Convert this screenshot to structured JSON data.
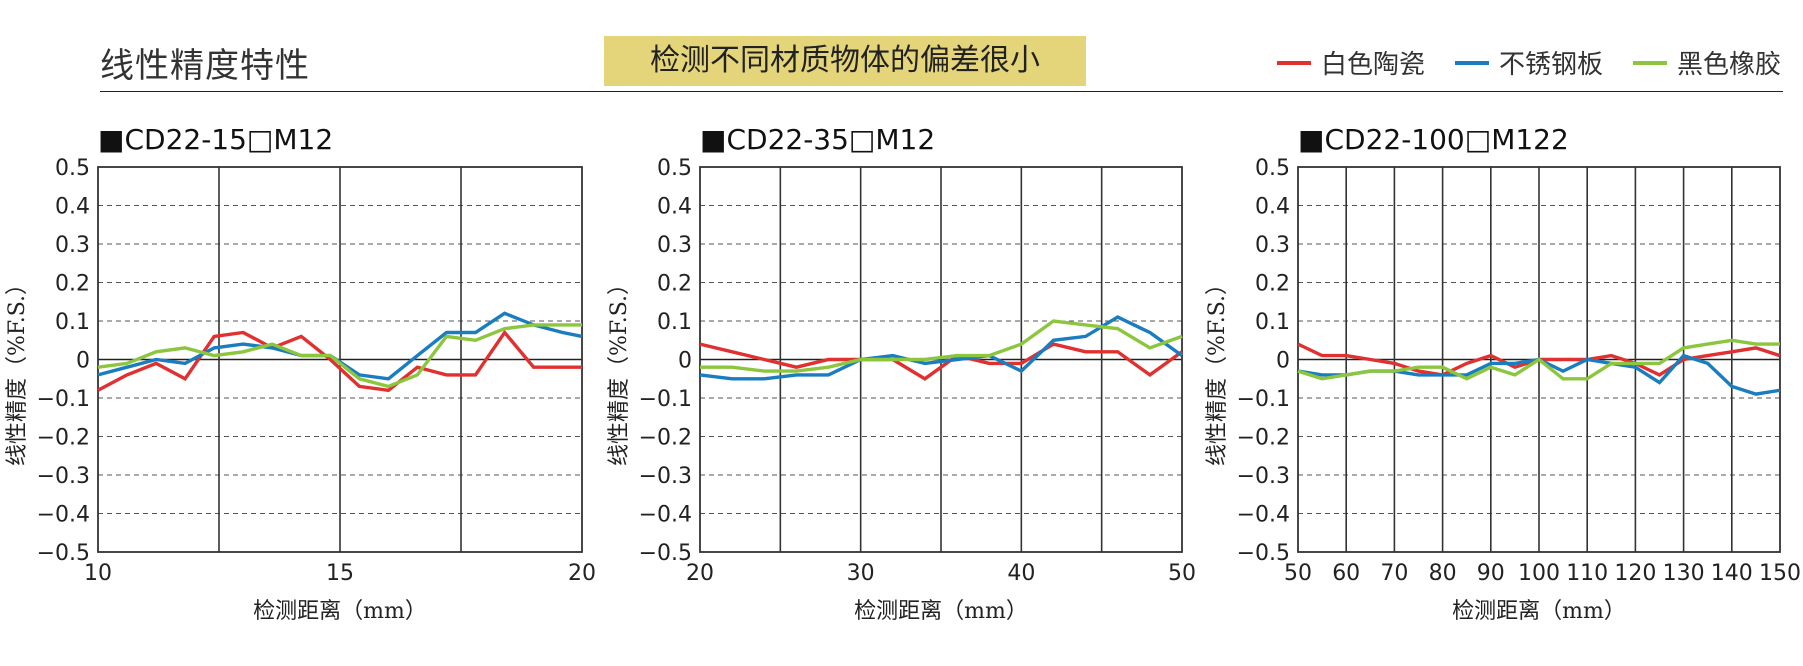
{
  "header": {
    "title": "线性精度特性",
    "banner": "检测不同材质物体的偏差很小"
  },
  "legend": [
    {
      "name": "白色陶瓷",
      "color": "#e03030"
    },
    {
      "name": "不锈钢板",
      "color": "#1a7dc0"
    },
    {
      "name": "黑色橡胶",
      "color": "#8cc63f"
    }
  ],
  "chart_data": [
    {
      "type": "line",
      "title": "■CD22-15□M12",
      "xlabel": "检测距离（mm）",
      "ylabel": "线性精度（%F.S.）",
      "xlim": [
        10,
        20
      ],
      "ylim": [
        -0.5,
        0.5
      ],
      "xticks": [
        10,
        15,
        20
      ],
      "yticks": [
        0.5,
        0.4,
        0.3,
        0.2,
        0.1,
        0,
        -0.1,
        -0.2,
        -0.3,
        -0.4,
        -0.5
      ],
      "ytick_labels": [
        "0.5",
        "0.4",
        "0.3",
        "0.2",
        "0.1",
        "0",
        "−0.1",
        "−0.2",
        "−0.3",
        "−0.4",
        "−0.5"
      ],
      "vgrid": [
        12.5,
        15,
        17.5
      ],
      "x": [
        10,
        10.6,
        11.2,
        11.8,
        12.4,
        13.0,
        13.6,
        14.2,
        14.8,
        15.4,
        16.0,
        16.6,
        17.2,
        17.8,
        18.4,
        19.0,
        19.6,
        20
      ],
      "series": [
        {
          "name": "白色陶瓷",
          "values": [
            -0.08,
            -0.04,
            -0.01,
            -0.05,
            0.06,
            0.07,
            0.03,
            0.06,
            0.0,
            -0.07,
            -0.08,
            -0.02,
            -0.04,
            -0.04,
            0.07,
            -0.02,
            -0.02,
            -0.02
          ]
        },
        {
          "name": "不锈钢板",
          "values": [
            -0.04,
            -0.02,
            0.0,
            -0.01,
            0.03,
            0.04,
            0.03,
            0.01,
            0.01,
            -0.04,
            -0.05,
            0.01,
            0.07,
            0.07,
            0.12,
            0.09,
            0.07,
            0.06
          ]
        },
        {
          "name": "黑色橡胶",
          "values": [
            -0.02,
            -0.01,
            0.02,
            0.03,
            0.01,
            0.02,
            0.04,
            0.01,
            0.01,
            -0.05,
            -0.07,
            -0.04,
            0.06,
            0.05,
            0.08,
            0.09,
            0.09,
            0.09
          ]
        }
      ]
    },
    {
      "type": "line",
      "title": "■CD22-35□M12",
      "xlabel": "检测距离（mm）",
      "ylabel": "线性精度（%F.S.）",
      "xlim": [
        20,
        50
      ],
      "ylim": [
        -0.5,
        0.5
      ],
      "xticks": [
        20,
        30,
        40,
        50
      ],
      "yticks": [
        0.5,
        0.4,
        0.3,
        0.2,
        0.1,
        0,
        -0.1,
        -0.2,
        -0.3,
        -0.4,
        -0.5
      ],
      "ytick_labels": [
        "0.5",
        "0.4",
        "0.3",
        "0.2",
        "0.1",
        "0",
        "−0.1",
        "−0.2",
        "−0.3",
        "−0.4",
        "−0.5"
      ],
      "vgrid": [
        25,
        30,
        35,
        40,
        45
      ],
      "x": [
        20,
        22,
        24,
        26,
        28,
        30,
        32,
        34,
        36,
        38,
        40,
        42,
        44,
        46,
        48,
        50
      ],
      "series": [
        {
          "name": "白色陶瓷",
          "values": [
            0.04,
            0.02,
            0.0,
            -0.02,
            0.0,
            0.0,
            0.0,
            -0.05,
            0.01,
            -0.01,
            -0.01,
            0.04,
            0.02,
            0.02,
            -0.04,
            0.02
          ]
        },
        {
          "name": "不锈钢板",
          "values": [
            -0.04,
            -0.05,
            -0.05,
            -0.04,
            -0.04,
            0.0,
            0.01,
            -0.01,
            0.0,
            0.01,
            -0.03,
            0.05,
            0.06,
            0.11,
            0.07,
            0.01
          ]
        },
        {
          "name": "黑色橡胶",
          "values": [
            -0.02,
            -0.02,
            -0.03,
            -0.03,
            -0.02,
            0.0,
            0.0,
            0.0,
            0.01,
            0.01,
            0.04,
            0.1,
            0.09,
            0.08,
            0.03,
            0.06
          ]
        }
      ]
    },
    {
      "type": "line",
      "title": "■CD22-100□M122",
      "xlabel": "检测距离（mm）",
      "ylabel": "线性精度（%F.S.）",
      "xlim": [
        50,
        150
      ],
      "ylim": [
        -0.5,
        0.5
      ],
      "xticks": [
        50,
        60,
        70,
        80,
        90,
        100,
        110,
        120,
        130,
        140,
        150
      ],
      "yticks": [
        0.5,
        0.4,
        0.3,
        0.2,
        0.1,
        0,
        -0.1,
        -0.2,
        -0.3,
        -0.4,
        -0.5
      ],
      "ytick_labels": [
        "0.5",
        "0.4",
        "0.3",
        "0.2",
        "0.1",
        "0",
        "−0.1",
        "−0.2",
        "−0.3",
        "−0.4",
        "−0.5"
      ],
      "vgrid": [
        60,
        70,
        80,
        90,
        100,
        110,
        120,
        130,
        140
      ],
      "x": [
        50,
        55,
        60,
        65,
        70,
        75,
        80,
        85,
        90,
        95,
        100,
        105,
        110,
        115,
        120,
        125,
        130,
        135,
        140,
        145,
        150
      ],
      "series": [
        {
          "name": "白色陶瓷",
          "values": [
            0.04,
            0.01,
            0.01,
            0.0,
            -0.01,
            -0.03,
            -0.04,
            -0.01,
            0.01,
            -0.02,
            0.0,
            0.0,
            0.0,
            0.01,
            -0.01,
            -0.04,
            0.0,
            0.01,
            0.02,
            0.03,
            0.01
          ]
        },
        {
          "name": "不锈钢板",
          "values": [
            -0.03,
            -0.04,
            -0.04,
            -0.03,
            -0.03,
            -0.04,
            -0.04,
            -0.04,
            -0.01,
            -0.01,
            0.0,
            -0.03,
            0.0,
            -0.01,
            -0.02,
            -0.06,
            0.01,
            -0.01,
            -0.07,
            -0.09,
            -0.08
          ]
        },
        {
          "name": "黑色橡胶",
          "values": [
            -0.03,
            -0.05,
            -0.04,
            -0.03,
            -0.03,
            -0.02,
            -0.02,
            -0.05,
            -0.02,
            -0.04,
            0.0,
            -0.05,
            -0.05,
            -0.01,
            -0.01,
            -0.01,
            0.03,
            0.04,
            0.05,
            0.04,
            0.04
          ]
        }
      ]
    }
  ]
}
